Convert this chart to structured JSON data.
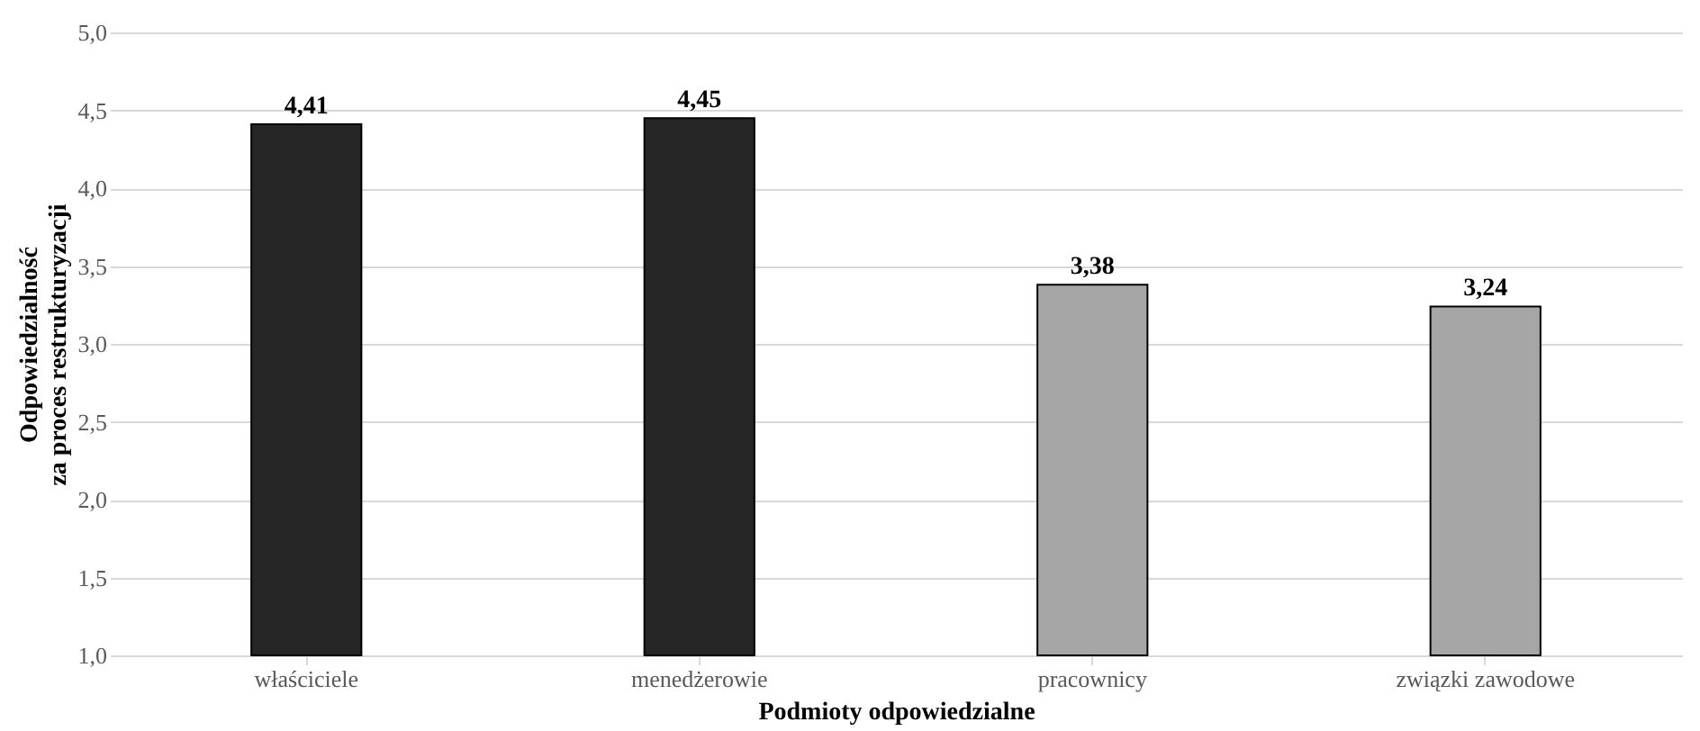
{
  "chart_data": {
    "type": "bar",
    "xlabel": "Podmioty odpowiedzialne",
    "ylabel": "Odpowiedzialność\nza proces restrukturyzacji",
    "categories": [
      "właściciele",
      "menedżerowie",
      "pracownicy",
      "związki zawodowe"
    ],
    "values": [
      4.41,
      4.45,
      3.38,
      3.24
    ],
    "colors": [
      "#262626",
      "#262626",
      "#a6a6a6",
      "#a6a6a6"
    ],
    "value_labels": [
      "4,41",
      "4,45",
      "3,38",
      "3,24"
    ],
    "ylim": [
      1.0,
      5.0
    ],
    "yticks": [
      {
        "value": 1.0,
        "label": "1,0"
      },
      {
        "value": 1.5,
        "label": "1,5"
      },
      {
        "value": 2.0,
        "label": "2,0"
      },
      {
        "value": 2.5,
        "label": "2,5"
      },
      {
        "value": 3.0,
        "label": "3,0"
      },
      {
        "value": 3.5,
        "label": "3,5"
      },
      {
        "value": 4.0,
        "label": "4,0"
      },
      {
        "value": 4.5,
        "label": "4,5"
      },
      {
        "value": 5.0,
        "label": "5,0"
      }
    ],
    "grid": "y"
  }
}
